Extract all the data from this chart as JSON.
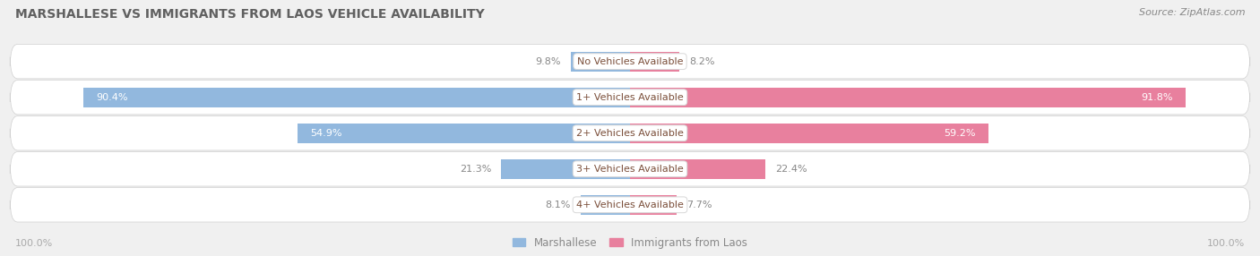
{
  "title": "MARSHALLESE VS IMMIGRANTS FROM LAOS VEHICLE AVAILABILITY",
  "source": "Source: ZipAtlas.com",
  "categories": [
    "No Vehicles Available",
    "1+ Vehicles Available",
    "2+ Vehicles Available",
    "3+ Vehicles Available",
    "4+ Vehicles Available"
  ],
  "marshallese": [
    9.8,
    90.4,
    54.9,
    21.3,
    8.1
  ],
  "immigrants_laos": [
    8.2,
    91.8,
    59.2,
    22.4,
    7.7
  ],
  "blue_color": "#92b8de",
  "pink_color": "#e8809e",
  "bg_color": "#f0f0f0",
  "row_bg_color": "#ffffff",
  "label_color": "#888888",
  "cat_label_color": "#7b4f3a",
  "axis_label_color": "#aaaaaa",
  "title_color": "#606060",
  "figwidth": 14.06,
  "figheight": 2.86,
  "dpi": 100
}
